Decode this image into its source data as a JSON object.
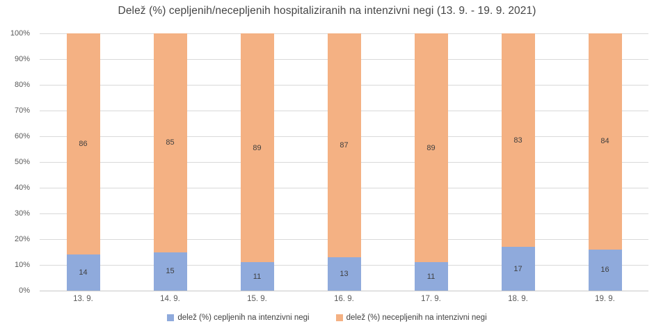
{
  "title": "Delež (%) cepljenih/necepljenih hospitaliziranih na intenzivni negi (13. 9. - 19. 9. 2021)",
  "colors": {
    "cepljeni_blue": "#8FAADC",
    "necepljeni_orange": "#F4B183",
    "gridline": "#D9D9D9",
    "axis_text": "#595959",
    "bar_label_text": "#3F3F3F"
  },
  "chart_data": {
    "type": "bar",
    "stacked": true,
    "title": "Delež (%) cepljenih/necepljenih hospitaliziranih na intenzivni negi (13. 9. - 19. 9. 2021)",
    "categories": [
      "13. 9.",
      "14. 9.",
      "15. 9.",
      "16. 9.",
      "17. 9.",
      "18. 9.",
      "19. 9."
    ],
    "series": [
      {
        "name": "delež (%) cepljenih na intenzivni negi",
        "color": "#8FAADC",
        "values": [
          14,
          15,
          11,
          13,
          11,
          17,
          16
        ]
      },
      {
        "name": "delež (%) necepljenih na intenzivni negi",
        "color": "#F4B183",
        "values": [
          86,
          85,
          89,
          87,
          89,
          83,
          84
        ]
      }
    ],
    "xlabel": "",
    "ylabel": "",
    "ylim": [
      0,
      100
    ],
    "y_ticks": [
      0,
      10,
      20,
      30,
      40,
      50,
      60,
      70,
      80,
      90,
      100
    ],
    "y_tick_labels": [
      "0%",
      "10%",
      "20%",
      "30%",
      "40%",
      "50%",
      "60%",
      "70%",
      "80%",
      "90%",
      "100%"
    ],
    "grid": true,
    "data_labels": true,
    "legend_position": "bottom"
  }
}
